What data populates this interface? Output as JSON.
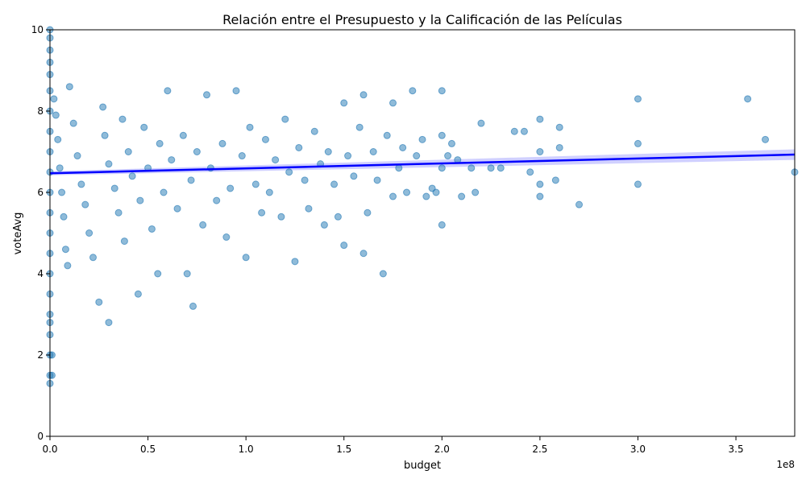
{
  "chart_data": {
    "type": "scatter",
    "title": "Relación entre el Presupuesto y la Calificación de las Películas",
    "xlabel": "budget",
    "ylabel": "voteAvg",
    "x_offset_label": "1e8",
    "xlim": [
      0,
      3.8
    ],
    "ylim": [
      0,
      10
    ],
    "x_ticks": [
      0,
      0.5,
      1.0,
      1.5,
      2.0,
      2.5,
      3.0,
      3.5
    ],
    "x_tick_labels": [
      "0.0",
      "0.5",
      "1.0",
      "1.5",
      "2.0",
      "2.5",
      "3.0",
      "3.5"
    ],
    "y_ticks": [
      0,
      2,
      4,
      6,
      8,
      10
    ],
    "y_tick_labels": [
      "0",
      "2",
      "4",
      "6",
      "8",
      "10"
    ],
    "grid": false,
    "colors": {
      "points": "#1f77b4",
      "regression": "#0000ff",
      "ci_band": "#aaaaff"
    },
    "regression": {
      "x": [
        0,
        3.8
      ],
      "y": [
        6.47,
        6.93
      ],
      "ci_halfwidth_at_ends": [
        0.05,
        0.13
      ]
    },
    "series": [
      {
        "values": [
          [
            0.0,
            9.8
          ],
          [
            0.0,
            9.5
          ],
          [
            0.0,
            9.2
          ],
          [
            0.0,
            8.9
          ],
          [
            0.0,
            8.5
          ],
          [
            0.0,
            8.0
          ],
          [
            0.0,
            7.5
          ],
          [
            0.0,
            7.0
          ],
          [
            0.0,
            6.5
          ],
          [
            0.0,
            6.0
          ],
          [
            0.0,
            5.5
          ],
          [
            0.0,
            5.0
          ],
          [
            0.0,
            4.5
          ],
          [
            0.0,
            4.0
          ],
          [
            0.0,
            3.5
          ],
          [
            0.0,
            3.0
          ],
          [
            0.0,
            2.8
          ],
          [
            0.0,
            2.5
          ],
          [
            0.0,
            2.0
          ],
          [
            0.0,
            1.5
          ],
          [
            0.0,
            1.3
          ],
          [
            0.01,
            2.0
          ],
          [
            0.01,
            1.5
          ],
          [
            0.0,
            10.0
          ],
          [
            0.02,
            8.3
          ],
          [
            0.03,
            7.9
          ],
          [
            0.04,
            7.3
          ],
          [
            0.05,
            6.6
          ],
          [
            0.06,
            6.0
          ],
          [
            0.07,
            5.4
          ],
          [
            0.08,
            4.6
          ],
          [
            0.09,
            4.2
          ],
          [
            0.1,
            8.6
          ],
          [
            0.12,
            7.7
          ],
          [
            0.14,
            6.9
          ],
          [
            0.16,
            6.2
          ],
          [
            0.18,
            5.7
          ],
          [
            0.2,
            5.0
          ],
          [
            0.22,
            4.4
          ],
          [
            0.25,
            3.3
          ],
          [
            0.27,
            8.1
          ],
          [
            0.28,
            7.4
          ],
          [
            0.3,
            6.7
          ],
          [
            0.3,
            2.8
          ],
          [
            0.33,
            6.1
          ],
          [
            0.35,
            5.5
          ],
          [
            0.37,
            7.8
          ],
          [
            0.38,
            4.8
          ],
          [
            0.4,
            7.0
          ],
          [
            0.42,
            6.4
          ],
          [
            0.45,
            3.5
          ],
          [
            0.46,
            5.8
          ],
          [
            0.48,
            7.6
          ],
          [
            0.5,
            6.6
          ],
          [
            0.52,
            5.1
          ],
          [
            0.55,
            4.0
          ],
          [
            0.56,
            7.2
          ],
          [
            0.58,
            6.0
          ],
          [
            0.6,
            8.5
          ],
          [
            0.62,
            6.8
          ],
          [
            0.65,
            5.6
          ],
          [
            0.68,
            7.4
          ],
          [
            0.7,
            4.0
          ],
          [
            0.72,
            6.3
          ],
          [
            0.73,
            3.2
          ],
          [
            0.75,
            7.0
          ],
          [
            0.78,
            5.2
          ],
          [
            0.8,
            8.4
          ],
          [
            0.82,
            6.6
          ],
          [
            0.85,
            5.8
          ],
          [
            0.88,
            7.2
          ],
          [
            0.9,
            4.9
          ],
          [
            0.92,
            6.1
          ],
          [
            0.95,
            8.5
          ],
          [
            0.98,
            6.9
          ],
          [
            1.0,
            4.4
          ],
          [
            1.02,
            7.6
          ],
          [
            1.05,
            6.2
          ],
          [
            1.08,
            5.5
          ],
          [
            1.1,
            7.3
          ],
          [
            1.12,
            6.0
          ],
          [
            1.15,
            6.8
          ],
          [
            1.18,
            5.4
          ],
          [
            1.2,
            7.8
          ],
          [
            1.22,
            6.5
          ],
          [
            1.25,
            4.3
          ],
          [
            1.27,
            7.1
          ],
          [
            1.3,
            6.3
          ],
          [
            1.32,
            5.6
          ],
          [
            1.35,
            7.5
          ],
          [
            1.38,
            6.7
          ],
          [
            1.4,
            5.2
          ],
          [
            1.42,
            7.0
          ],
          [
            1.45,
            6.2
          ],
          [
            1.47,
            5.4
          ],
          [
            1.5,
            8.2
          ],
          [
            1.5,
            4.7
          ],
          [
            1.52,
            6.9
          ],
          [
            1.55,
            6.4
          ],
          [
            1.58,
            7.6
          ],
          [
            1.6,
            4.5
          ],
          [
            1.6,
            8.4
          ],
          [
            1.62,
            5.5
          ],
          [
            1.65,
            7.0
          ],
          [
            1.67,
            6.3
          ],
          [
            1.7,
            4.0
          ],
          [
            1.72,
            7.4
          ],
          [
            1.75,
            5.9
          ],
          [
            1.75,
            8.2
          ],
          [
            1.78,
            6.6
          ],
          [
            1.8,
            7.1
          ],
          [
            1.82,
            6.0
          ],
          [
            1.85,
            8.5
          ],
          [
            1.87,
            6.9
          ],
          [
            1.9,
            7.3
          ],
          [
            1.92,
            5.9
          ],
          [
            1.95,
            6.1
          ],
          [
            1.97,
            6.0
          ],
          [
            2.0,
            8.5
          ],
          [
            2.0,
            7.4
          ],
          [
            2.0,
            6.6
          ],
          [
            2.0,
            5.2
          ],
          [
            2.03,
            6.9
          ],
          [
            2.05,
            7.2
          ],
          [
            2.08,
            6.8
          ],
          [
            2.1,
            5.9
          ],
          [
            2.15,
            6.6
          ],
          [
            2.17,
            6.0
          ],
          [
            2.2,
            7.7
          ],
          [
            2.25,
            6.6
          ],
          [
            2.3,
            6.6
          ],
          [
            2.37,
            7.5
          ],
          [
            2.42,
            7.5
          ],
          [
            2.45,
            6.5
          ],
          [
            2.5,
            7.8
          ],
          [
            2.5,
            7.0
          ],
          [
            2.5,
            6.2
          ],
          [
            2.5,
            5.9
          ],
          [
            2.58,
            6.3
          ],
          [
            2.6,
            7.6
          ],
          [
            2.6,
            7.1
          ],
          [
            2.7,
            5.7
          ],
          [
            3.0,
            8.3
          ],
          [
            3.0,
            7.2
          ],
          [
            3.0,
            6.2
          ],
          [
            3.56,
            8.3
          ],
          [
            3.65,
            7.3
          ],
          [
            3.8,
            6.5
          ]
        ]
      }
    ]
  }
}
